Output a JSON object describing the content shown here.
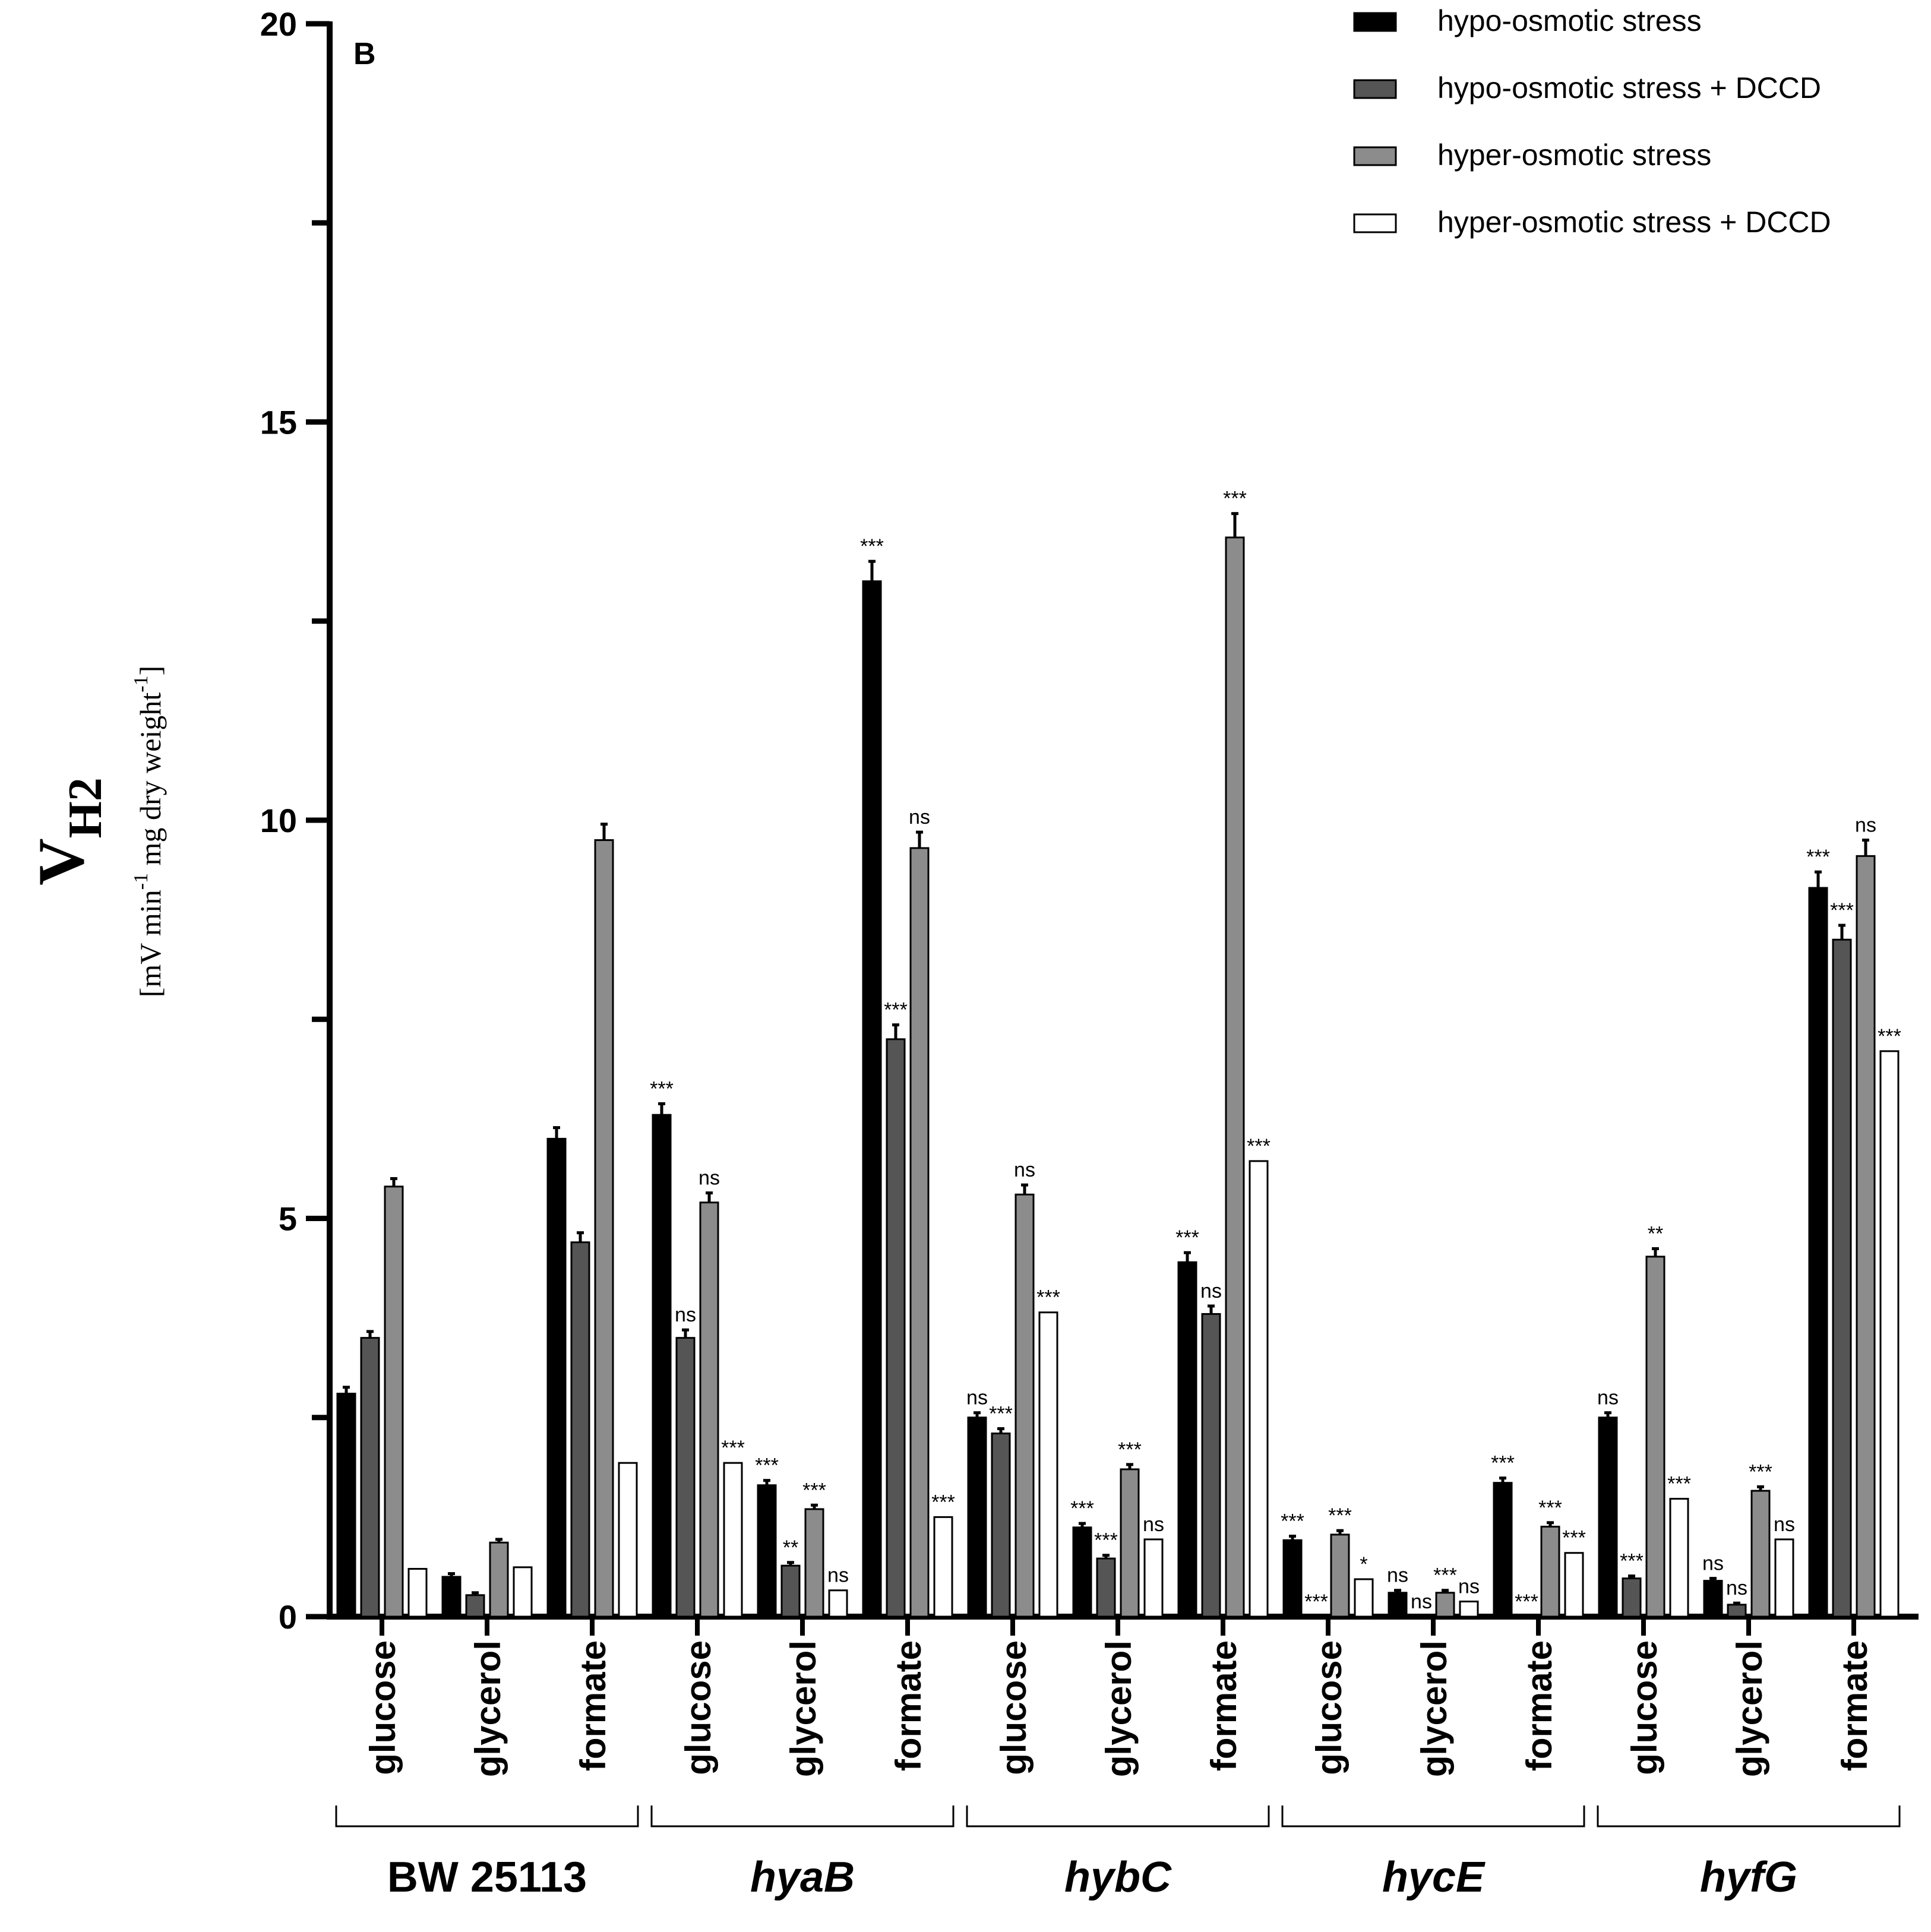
{
  "chart_data": {
    "type": "bar",
    "panel_label": "B",
    "ylabel_main": "V",
    "ylabel_main_sub": "H2",
    "ylabel_units": "[mV min-1 mg dry weight-1]",
    "ylabel_units_parts": [
      "[mV min",
      "-1",
      " mg dry weight",
      "-1",
      "]"
    ],
    "ylim": [
      0,
      20
    ],
    "yticks": [
      0,
      5,
      10,
      15,
      20
    ],
    "ytick_labels": [
      "0",
      "5",
      "10",
      "15",
      "20"
    ],
    "legend_position": "top-right",
    "series": [
      {
        "name": "hypo-osmotic stress",
        "color": "#000000"
      },
      {
        "name": "hypo-osmotic stress + DCCD",
        "color": "#555555"
      },
      {
        "name": "hyper-osmotic stress",
        "color": "#8c8c8c"
      },
      {
        "name": "hyper-osmotic stress + DCCD",
        "color": "#ffffff"
      }
    ],
    "groups": [
      {
        "name": "BW 25113",
        "italic": false,
        "categories": [
          {
            "label": "glucose",
            "values": [
              2.8,
              3.5,
              5.4,
              0.6
            ],
            "errors": [
              0.08,
              0.08,
              0.1,
              0
            ],
            "sig": [
              "",
              "",
              "",
              ""
            ]
          },
          {
            "label": "glycerol",
            "values": [
              0.5,
              0.27,
              0.93,
              0.62
            ],
            "errors": [
              0.04,
              0.03,
              0.04,
              0
            ],
            "sig": [
              "",
              "",
              "",
              ""
            ]
          },
          {
            "label": "formate",
            "values": [
              6.0,
              4.7,
              9.75,
              1.93
            ],
            "errors": [
              0.14,
              0.12,
              0.2,
              0
            ],
            "sig": [
              "",
              "",
              "",
              ""
            ]
          }
        ]
      },
      {
        "name": "hyaB",
        "italic": true,
        "categories": [
          {
            "label": "glucose",
            "values": [
              6.3,
              3.5,
              5.2,
              1.93
            ],
            "errors": [
              0.14,
              0.1,
              0.12,
              0
            ],
            "sig": [
              "***",
              "ns",
              "ns",
              "***"
            ]
          },
          {
            "label": "glycerol",
            "values": [
              1.65,
              0.64,
              1.35,
              0.33
            ],
            "errors": [
              0.06,
              0.04,
              0.05,
              0
            ],
            "sig": [
              "***",
              "**",
              "***",
              "ns"
            ]
          },
          {
            "label": "formate",
            "values": [
              13.0,
              7.25,
              9.65,
              1.25
            ],
            "errors": [
              0.25,
              0.18,
              0.2,
              0
            ],
            "sig": [
              "***",
              "***",
              "ns",
              "***"
            ]
          }
        ]
      },
      {
        "name": "hybC",
        "italic": true,
        "categories": [
          {
            "label": "glucose",
            "values": [
              2.5,
              2.3,
              5.3,
              3.82
            ],
            "errors": [
              0.06,
              0.06,
              0.12,
              0
            ],
            "sig": [
              "ns",
              "***",
              "ns",
              "***"
            ]
          },
          {
            "label": "glycerol",
            "values": [
              1.12,
              0.73,
              1.85,
              0.97
            ],
            "errors": [
              0.05,
              0.04,
              0.06,
              0
            ],
            "sig": [
              "***",
              "***",
              "***",
              "ns"
            ]
          },
          {
            "label": "formate",
            "values": [
              4.45,
              3.8,
              13.55,
              5.72
            ],
            "errors": [
              0.12,
              0.1,
              0.3,
              0
            ],
            "sig": [
              "***",
              "ns",
              "***",
              "***"
            ]
          }
        ]
      },
      {
        "name": "hycE",
        "italic": true,
        "categories": [
          {
            "label": "glucose",
            "values": [
              0.96,
              0,
              1.03,
              0.47
            ],
            "errors": [
              0.05,
              0,
              0.05,
              0
            ],
            "sig": [
              "***",
              "***",
              "***",
              "*"
            ]
          },
          {
            "label": "glycerol",
            "values": [
              0.3,
              0,
              0.3,
              0.19
            ],
            "errors": [
              0.03,
              0,
              0.03,
              0
            ],
            "sig": [
              "ns",
              "ns",
              "***",
              "ns"
            ]
          },
          {
            "label": "formate",
            "values": [
              1.68,
              0,
              1.13,
              0.8
            ],
            "errors": [
              0.06,
              0,
              0.05,
              0
            ],
            "sig": [
              "***",
              "***",
              "***",
              "***"
            ]
          }
        ]
      },
      {
        "name": "hyfG",
        "italic": true,
        "categories": [
          {
            "label": "glucose",
            "values": [
              2.5,
              0.48,
              4.52,
              1.48
            ],
            "errors": [
              0.06,
              0.03,
              0.1,
              0
            ],
            "sig": [
              "ns",
              "***",
              "**",
              "***"
            ]
          },
          {
            "label": "glycerol",
            "values": [
              0.45,
              0.15,
              1.58,
              0.97
            ],
            "errors": [
              0.03,
              0.02,
              0.05,
              0
            ],
            "sig": [
              "ns",
              "ns",
              "***",
              "ns"
            ]
          },
          {
            "label": "formate",
            "values": [
              9.15,
              8.5,
              9.55,
              7.1
            ],
            "errors": [
              0.2,
              0.18,
              0.2,
              0
            ],
            "sig": [
              "***",
              "***",
              "ns",
              "***"
            ]
          }
        ]
      }
    ]
  }
}
